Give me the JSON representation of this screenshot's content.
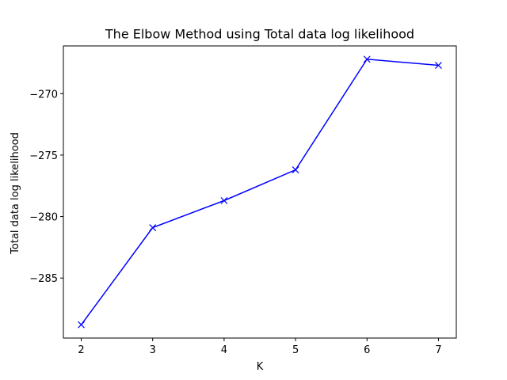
{
  "chart_data": {
    "type": "line",
    "title": "The Elbow Method using Total data log likelihood",
    "xlabel": "K",
    "ylabel": "Total data log likelihood",
    "x": [
      2,
      3,
      4,
      5,
      6,
      7
    ],
    "series": [
      {
        "values": [
          -288.8,
          -280.9,
          -278.7,
          -276.2,
          -267.2,
          -267.7
        ],
        "color": "#0000ff",
        "marker": "x"
      }
    ],
    "xticks": [
      2,
      3,
      4,
      5,
      6,
      7
    ],
    "yticks": [
      -285,
      -280,
      -275,
      -270
    ],
    "xlim": [
      1.75,
      7.25
    ],
    "ylim": [
      -289.88,
      -266.12
    ],
    "grid": false
  }
}
